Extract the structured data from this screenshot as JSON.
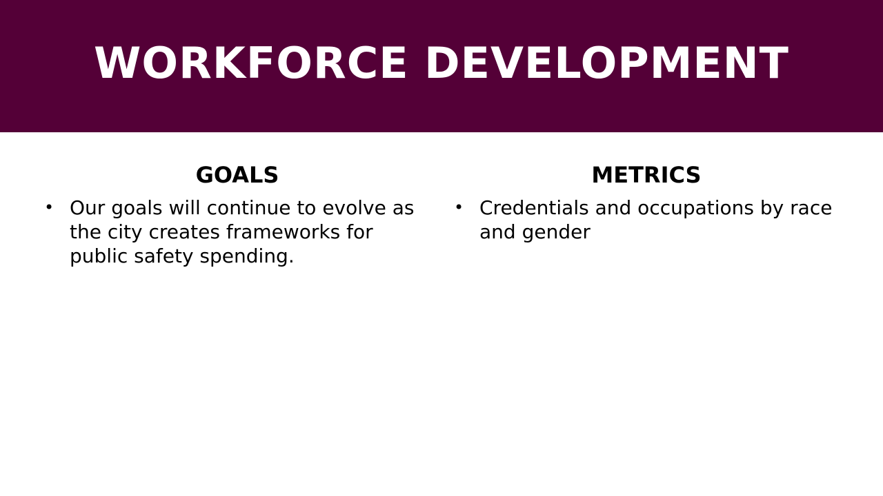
{
  "slide": {
    "title": "WORKFORCE DEVELOPMENT",
    "header_color": "#540037"
  },
  "goals": {
    "heading": "GOALS",
    "items": [
      "Our goals will continue to evolve as the city creates frameworks for public safety spending."
    ]
  },
  "metrics": {
    "heading": "METRICS",
    "items": [
      "Credentials and occupations by race and gender"
    ]
  }
}
